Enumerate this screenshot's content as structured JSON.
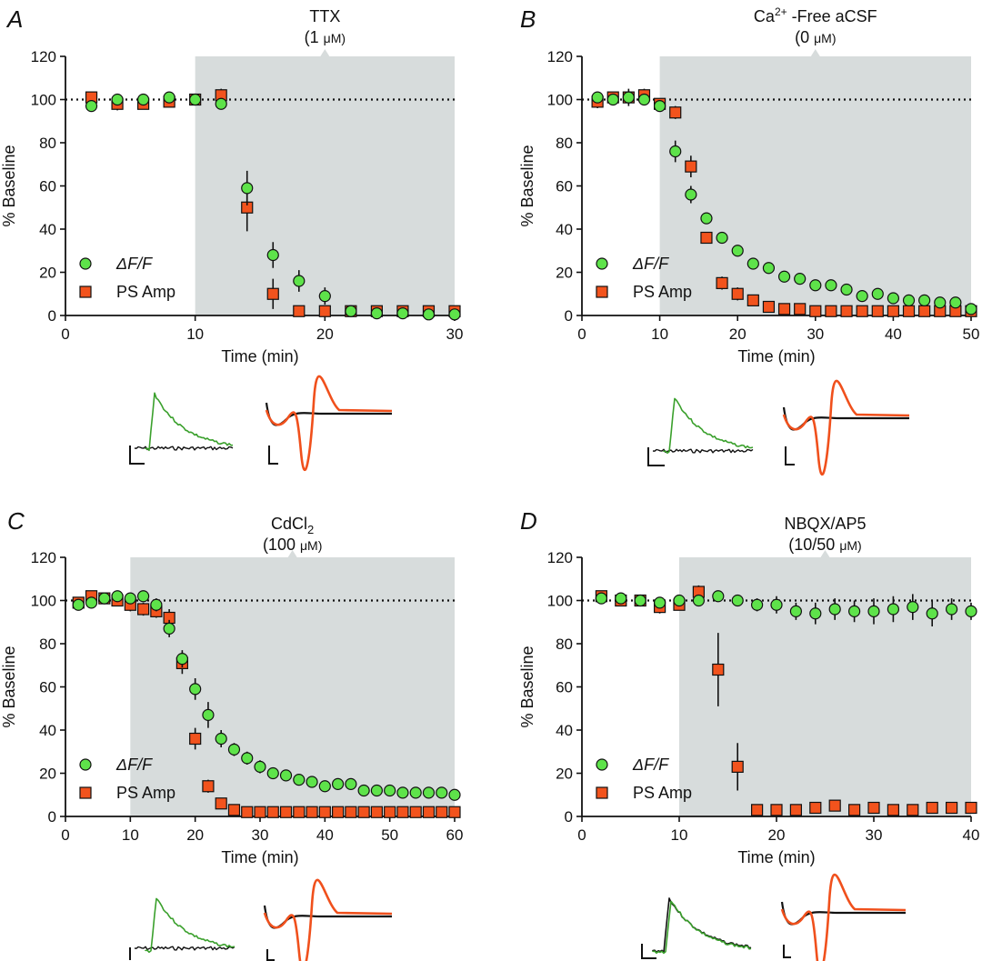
{
  "colors": {
    "green": "#5ee34a",
    "orange": "#f2531d",
    "shade": "#d7dcdc",
    "axis": "#111111",
    "trace_green": "#3aa02c",
    "trace_black": "#111111",
    "trace_orange": "#f0501c"
  },
  "chart_data": [
    {
      "type": "scatter",
      "panel": "A",
      "treatment": "TTX",
      "concentration": [
        "(1 ",
        "μ",
        "M)"
      ],
      "xlabel": "Time (min)",
      "ylabel": "% Baseline",
      "xlim": [
        0,
        30
      ],
      "ylim": [
        0,
        120
      ],
      "xticks": [
        0,
        10,
        20,
        30
      ],
      "yticks": [
        0,
        20,
        40,
        60,
        80,
        100,
        120
      ],
      "shade_range": [
        10,
        30
      ],
      "baseline": 100,
      "legend": [
        {
          "label": "ΔF/F",
          "marker": "circle"
        },
        {
          "label": "PS Amp",
          "marker": "square"
        }
      ],
      "series": [
        {
          "name": "ΔF/F",
          "marker": "circle",
          "x": [
            2,
            4,
            6,
            8,
            10,
            12,
            14,
            16,
            18,
            20,
            22,
            24,
            26,
            28,
            30
          ],
          "y": [
            97,
            100,
            100,
            101,
            100,
            98,
            59,
            28,
            16,
            9,
            2,
            1,
            1,
            0.5,
            0.5
          ],
          "err": [
            2,
            2,
            2,
            2,
            1,
            2,
            8,
            6,
            5,
            4,
            1,
            1,
            1,
            1,
            1
          ]
        },
        {
          "name": "PS Amp",
          "marker": "square",
          "x": [
            2,
            4,
            6,
            8,
            10,
            12,
            14,
            16,
            18,
            20,
            22,
            24,
            26,
            28,
            30
          ],
          "y": [
            101,
            98,
            98,
            99,
            100,
            102,
            50,
            10,
            2,
            2,
            2,
            2,
            2,
            2,
            2
          ],
          "err": [
            2,
            3,
            2,
            2,
            1,
            3,
            11,
            7,
            2,
            1,
            1,
            1,
            1,
            1,
            1
          ]
        }
      ]
    },
    {
      "type": "scatter",
      "panel": "B",
      "treatment": [
        "Ca",
        "2+",
        " -Free aCSF"
      ],
      "concentration": [
        "(0 ",
        "μ",
        "M)"
      ],
      "xlabel": "Time (min)",
      "ylabel": "% Baseline",
      "xlim": [
        0,
        50
      ],
      "ylim": [
        0,
        120
      ],
      "xticks": [
        0,
        10,
        20,
        30,
        40,
        50
      ],
      "yticks": [
        0,
        20,
        40,
        60,
        80,
        100,
        120
      ],
      "shade_range": [
        10,
        50
      ],
      "baseline": 100,
      "legend": [
        {
          "label": "ΔF/F",
          "marker": "circle"
        },
        {
          "label": "PS Amp",
          "marker": "square"
        }
      ],
      "series": [
        {
          "name": "ΔF/F",
          "marker": "circle",
          "x": [
            2,
            4,
            6,
            8,
            10,
            12,
            14,
            16,
            18,
            20,
            22,
            24,
            26,
            28,
            30,
            32,
            34,
            36,
            38,
            40,
            42,
            44,
            46,
            48,
            50
          ],
          "y": [
            101,
            100,
            101,
            100,
            97,
            76,
            56,
            45,
            36,
            30,
            24,
            22,
            18,
            17,
            14,
            14,
            12,
            9,
            10,
            8,
            7,
            7,
            6,
            6,
            3
          ],
          "err": [
            2,
            2,
            4,
            2,
            2,
            5,
            4,
            2,
            2,
            2,
            1,
            1,
            1,
            1,
            1,
            1,
            1,
            1,
            1,
            1,
            1,
            1,
            1,
            1,
            1
          ]
        },
        {
          "name": "PS Amp",
          "marker": "square",
          "x": [
            2,
            4,
            6,
            8,
            10,
            12,
            14,
            16,
            18,
            20,
            22,
            24,
            26,
            28,
            30,
            32,
            34,
            36,
            38,
            40,
            42,
            44,
            46,
            48,
            50
          ],
          "y": [
            99,
            101,
            101,
            102,
            98,
            94,
            69,
            36,
            15,
            10,
            7,
            4,
            3,
            3,
            2,
            2,
            2,
            2,
            2,
            2,
            2,
            2,
            2,
            2,
            2
          ],
          "err": [
            3,
            2,
            3,
            3,
            2,
            3,
            5,
            2,
            3,
            3,
            2,
            2,
            1,
            1,
            1,
            1,
            1,
            1,
            1,
            1,
            1,
            1,
            1,
            1,
            1
          ]
        }
      ]
    },
    {
      "type": "scatter",
      "panel": "C",
      "treatment": [
        "CdCl",
        "2",
        ""
      ],
      "concentration": [
        "(100 ",
        "μ",
        "M)"
      ],
      "xlabel": "Time (min)",
      "ylabel": "% Baseline",
      "xlim": [
        0,
        60
      ],
      "ylim": [
        0,
        120
      ],
      "xticks": [
        0,
        10,
        20,
        30,
        40,
        50,
        60
      ],
      "yticks": [
        0,
        20,
        40,
        60,
        80,
        100,
        120
      ],
      "shade_range": [
        10,
        60
      ],
      "baseline": 100,
      "legend": [
        {
          "label": "ΔF/F",
          "marker": "circle"
        },
        {
          "label": "PS Amp",
          "marker": "square"
        }
      ],
      "series": [
        {
          "name": "ΔF/F",
          "marker": "circle",
          "x": [
            2,
            4,
            6,
            8,
            10,
            12,
            14,
            16,
            18,
            20,
            22,
            24,
            26,
            28,
            30,
            32,
            34,
            36,
            38,
            40,
            42,
            44,
            46,
            48,
            50,
            52,
            54,
            56,
            58,
            60
          ],
          "y": [
            98,
            99,
            101,
            102,
            101,
            102,
            98,
            87,
            73,
            59,
            47,
            36,
            31,
            27,
            23,
            20,
            19,
            17,
            16,
            14,
            15,
            15,
            12,
            12,
            12,
            11,
            11,
            11,
            11,
            10
          ],
          "err": [
            2,
            2,
            2,
            2,
            2,
            2,
            3,
            4,
            4,
            5,
            6,
            4,
            3,
            3,
            3,
            2,
            2,
            2,
            2,
            2,
            1,
            1,
            1,
            1,
            1,
            1,
            1,
            1,
            1,
            1
          ]
        },
        {
          "name": "PS Amp",
          "marker": "square",
          "x": [
            2,
            4,
            6,
            8,
            10,
            12,
            14,
            16,
            18,
            20,
            22,
            24,
            26,
            28,
            30,
            32,
            34,
            36,
            38,
            40,
            42,
            44,
            46,
            48,
            50,
            52,
            54,
            56,
            58,
            60
          ],
          "y": [
            99,
            102,
            101,
            100,
            98,
            96,
            95,
            92,
            71,
            36,
            14,
            6,
            3,
            2,
            2,
            2,
            2,
            2,
            2,
            2,
            2,
            2,
            2,
            2,
            2,
            2,
            2,
            2,
            2,
            2
          ],
          "err": [
            2,
            2,
            2,
            2,
            3,
            3,
            3,
            4,
            5,
            5,
            3,
            2,
            1,
            1,
            1,
            1,
            1,
            1,
            1,
            1,
            1,
            1,
            1,
            1,
            1,
            1,
            1,
            1,
            1,
            1
          ]
        }
      ]
    },
    {
      "type": "scatter",
      "panel": "D",
      "treatment": "NBQX/AP5",
      "concentration": [
        "(10/50 ",
        "μ",
        "M)"
      ],
      "xlabel": "Time (min)",
      "ylabel": "% Baseline",
      "xlim": [
        0,
        40
      ],
      "ylim": [
        0,
        120
      ],
      "xticks": [
        0,
        10,
        20,
        30,
        40
      ],
      "yticks": [
        0,
        20,
        40,
        60,
        80,
        100,
        120
      ],
      "shade_range": [
        10,
        40
      ],
      "baseline": 100,
      "legend": [
        {
          "label": "ΔF/F",
          "marker": "circle"
        },
        {
          "label": "PS Amp",
          "marker": "square"
        }
      ],
      "series": [
        {
          "name": "ΔF/F",
          "marker": "circle",
          "x": [
            2,
            4,
            6,
            8,
            10,
            12,
            14,
            16,
            18,
            20,
            22,
            24,
            26,
            28,
            30,
            32,
            34,
            36,
            38,
            40
          ],
          "y": [
            101,
            101,
            100,
            99,
            100,
            100,
            102,
            100,
            98,
            98,
            95,
            94,
            96,
            95,
            95,
            96,
            97,
            94,
            96,
            95
          ],
          "err": [
            2,
            2,
            2,
            2,
            2,
            2,
            2,
            2,
            3,
            4,
            4,
            5,
            5,
            5,
            6,
            6,
            6,
            6,
            5,
            4
          ]
        },
        {
          "name": "PS Amp",
          "marker": "square",
          "x": [
            2,
            4,
            6,
            8,
            10,
            12,
            14,
            16,
            18,
            20,
            22,
            24,
            26,
            28,
            30,
            32,
            34,
            36,
            38,
            40
          ],
          "y": [
            102,
            100,
            100,
            97,
            98,
            104,
            68,
            23,
            3,
            3,
            3,
            4,
            5,
            3,
            4,
            3,
            3,
            4,
            4,
            4
          ],
          "err": [
            2,
            2,
            2,
            3,
            2,
            3,
            17,
            11,
            1,
            1,
            1,
            1,
            1,
            1,
            1,
            1,
            1,
            1,
            1,
            1
          ]
        }
      ]
    }
  ]
}
